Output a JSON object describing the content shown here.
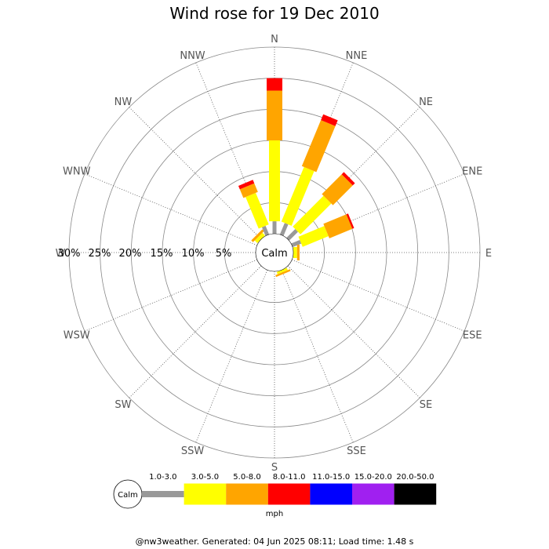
{
  "chart_data": {
    "type": "wind-rose",
    "title": "Wind rose for 19 Dec 2010",
    "directions": [
      "N",
      "NNE",
      "NE",
      "ENE",
      "E",
      "ESE",
      "SE",
      "SSE",
      "S",
      "SSW",
      "SW",
      "WSW",
      "W",
      "WNW",
      "NW",
      "NNW"
    ],
    "ring_labels": [
      "30%",
      "25%",
      "20%",
      "15%",
      "10%",
      "5%"
    ],
    "rings_percent": [
      5,
      10,
      15,
      20,
      25,
      30
    ],
    "rlim": [
      0,
      30
    ],
    "calm_label": "Calm",
    "unit": "mph",
    "speed_bins": [
      {
        "name": "1.0-3.0",
        "color": "#999999"
      },
      {
        "name": "3.0-5.0",
        "color": "#ffff00"
      },
      {
        "name": "5.0-8.0",
        "color": "#ffa500"
      },
      {
        "name": "8.0-11.0",
        "color": "#ff0000"
      },
      {
        "name": "11.0-15.0",
        "color": "#0000ff"
      },
      {
        "name": "15.0-20.0",
        "color": "#a020f0"
      },
      {
        "name": "20.0-50.0",
        "color": "#000000"
      }
    ],
    "series": [
      {
        "direction": "N",
        "values": [
          2.0,
          13.0,
          8.0,
          2.0,
          0,
          0,
          0
        ]
      },
      {
        "direction": "NNE",
        "values": [
          2.0,
          9.5,
          8.0,
          1.0,
          0,
          0,
          0
        ]
      },
      {
        "direction": "NE",
        "values": [
          2.0,
          7.0,
          4.5,
          0.5,
          0,
          0,
          0
        ]
      },
      {
        "direction": "ENE",
        "values": [
          1.5,
          4.5,
          4.0,
          0.3,
          0,
          0,
          0
        ]
      },
      {
        "direction": "E",
        "values": [
          0,
          0.6,
          0.4,
          0,
          0,
          0,
          0
        ]
      },
      {
        "direction": "ESE",
        "values": [
          0,
          0,
          0,
          0,
          0,
          0,
          0
        ]
      },
      {
        "direction": "SE",
        "values": [
          0,
          0,
          0,
          0,
          0,
          0,
          0
        ]
      },
      {
        "direction": "SSE",
        "values": [
          0,
          0.4,
          0.3,
          0,
          0,
          0,
          0
        ]
      },
      {
        "direction": "S",
        "values": [
          0,
          0,
          0,
          0,
          0,
          0,
          0
        ]
      },
      {
        "direction": "SSW",
        "values": [
          0,
          0,
          0,
          0,
          0,
          0,
          0
        ]
      },
      {
        "direction": "SW",
        "values": [
          0,
          0,
          0,
          0,
          0,
          0,
          0
        ]
      },
      {
        "direction": "WSW",
        "values": [
          0,
          0,
          0,
          0,
          0,
          0,
          0
        ]
      },
      {
        "direction": "W",
        "values": [
          0,
          0,
          0,
          0,
          0,
          0,
          0
        ]
      },
      {
        "direction": "WNW",
        "values": [
          0,
          0,
          0,
          0,
          0,
          0,
          0
        ]
      },
      {
        "direction": "NW",
        "values": [
          0,
          0.6,
          0.4,
          0,
          0,
          0,
          0
        ]
      },
      {
        "direction": "NNW",
        "values": [
          1.5,
          5.5,
          1.5,
          0.6,
          0,
          0,
          0
        ]
      }
    ]
  },
  "footer": "@nw3weather. Generated: 04 Jun 2025 08:11; Load time: 1.48 s"
}
